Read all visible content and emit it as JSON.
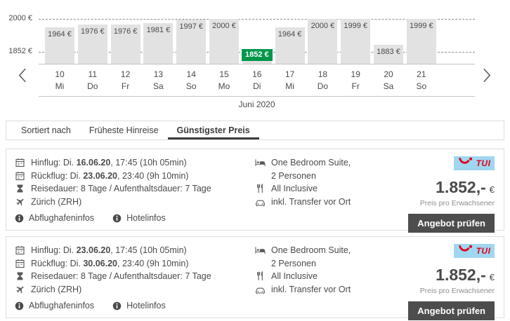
{
  "chart_data": {
    "type": "bar",
    "title": "Juni 2020",
    "categories": [
      "10 Mi",
      "11 Do",
      "12 Fr",
      "13 Sa",
      "14 So",
      "15 Mo",
      "16 Di",
      "17 Mi",
      "18 Do",
      "19 Fr",
      "20 Sa",
      "21 So"
    ],
    "days": [
      "10",
      "11",
      "12",
      "13",
      "14",
      "15",
      "16",
      "17",
      "18",
      "19",
      "20",
      "21"
    ],
    "weekdays": [
      "Mi",
      "Do",
      "Fr",
      "Sa",
      "So",
      "Mo",
      "Di",
      "Mi",
      "Do",
      "Fr",
      "Sa",
      "So"
    ],
    "values": [
      1964,
      1976,
      1976,
      1981,
      1997,
      2000,
      1852,
      1964,
      2000,
      1999,
      1883,
      1999
    ],
    "labels": [
      "1964 €",
      "1976 €",
      "1976 €",
      "1981 €",
      "1997 €",
      "2000 €",
      "1852 €",
      "1964 €",
      "2000 €",
      "1999 €",
      "1883 €",
      "1999 €"
    ],
    "yticks": [
      {
        "label": "2000 €",
        "value": 2000
      },
      {
        "label": "1852 €",
        "value": 1852
      }
    ],
    "ylim": [
      1800,
      2000
    ],
    "grid": "dashed-horizontal",
    "highlight_index": 6,
    "colors": {
      "bar": "#e2e2e2",
      "highlight": "#00974b",
      "label": "#4a4a4a"
    }
  },
  "chart_nav": {
    "prev_icon": "chevron-left-icon",
    "next_icon": "chevron-right-icon"
  },
  "tabs": {
    "items": [
      {
        "label": "Sortiert nach",
        "role": "label",
        "active": false
      },
      {
        "label": "Früheste Hinreise",
        "role": "tab",
        "active": false
      },
      {
        "label": "Günstigster Preis",
        "role": "tab",
        "active": true
      }
    ]
  },
  "brand": {
    "name": "TUI",
    "logo_bg": "#a0d7f0",
    "logo_color": "#e2001a"
  },
  "cards": [
    {
      "flight_rows": [
        {
          "icon": "calendar-icon",
          "pre": "Hinflug: Di. ",
          "bold": "16.06.20",
          "post": ", 17:45 (10h 05min)"
        },
        {
          "icon": "calendar-icon",
          "pre": "Rückflug: Di. ",
          "bold": "23.06.20",
          "post": ", 23:40 (9h 10min)"
        },
        {
          "icon": "hourglass-icon",
          "pre": "Reisedauer: 8 Tage / Aufenthaltsdauer: 7 Tage",
          "bold": "",
          "post": ""
        },
        {
          "icon": "plane-icon",
          "pre": "Zürich (ZRH)",
          "bold": "",
          "post": ""
        }
      ],
      "info_links": [
        {
          "icon": "info-icon",
          "label": "Abflughafeninfos"
        },
        {
          "icon": "info-icon",
          "label": "Hotelinfos"
        }
      ],
      "amenities": [
        {
          "icon": "bed-icon",
          "lines": [
            "One Bedroom Suite,",
            "2 Personen"
          ]
        },
        {
          "icon": "restaurant-icon",
          "lines": [
            "All Inclusive"
          ]
        },
        {
          "icon": "car-icon",
          "lines": [
            "inkl. Transfer vor Ort"
          ]
        }
      ],
      "price": "1.852,-",
      "currency": "€",
      "price_note": "Preis pro Erwachsener",
      "cta_label": "Angebot prüfen"
    },
    {
      "flight_rows": [
        {
          "icon": "calendar-icon",
          "pre": "Hinflug: Di. ",
          "bold": "23.06.20",
          "post": ", 17:45 (10h 05min)"
        },
        {
          "icon": "calendar-icon",
          "pre": "Rückflug: Di. ",
          "bold": "30.06.20",
          "post": ", 23:40 (9h 10min)"
        },
        {
          "icon": "hourglass-icon",
          "pre": "Reisedauer: 8 Tage / Aufenthaltsdauer: 7 Tage",
          "bold": "",
          "post": ""
        },
        {
          "icon": "plane-icon",
          "pre": "Zürich (ZRH)",
          "bold": "",
          "post": ""
        }
      ],
      "info_links": [
        {
          "icon": "info-icon",
          "label": "Abflughafeninfos"
        },
        {
          "icon": "info-icon",
          "label": "Hotelinfos"
        }
      ],
      "amenities": [
        {
          "icon": "bed-icon",
          "lines": [
            "One Bedroom Suite,",
            "2 Personen"
          ]
        },
        {
          "icon": "restaurant-icon",
          "lines": [
            "All Inclusive"
          ]
        },
        {
          "icon": "car-icon",
          "lines": [
            "inkl. Transfer vor Ort"
          ]
        }
      ],
      "price": "1.852,-",
      "currency": "€",
      "price_note": "Preis pro Erwachsener",
      "cta_label": "Angebot prüfen"
    }
  ]
}
